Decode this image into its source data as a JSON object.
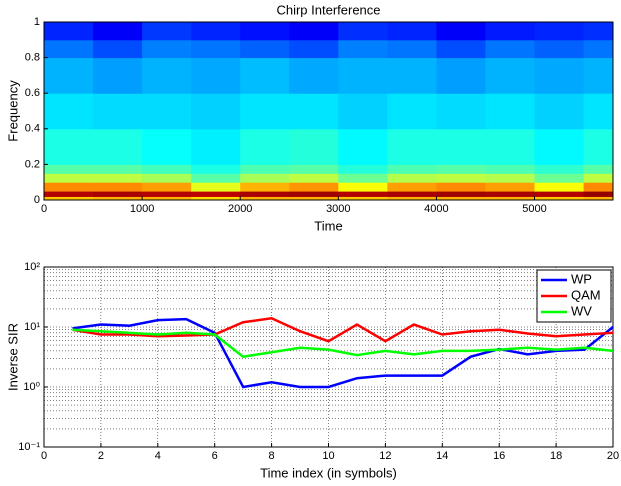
{
  "chart_data": [
    {
      "type": "heatmap",
      "title": "Chirp Interference",
      "xlabel": "Time",
      "ylabel": "Frequency",
      "colormap": "jet",
      "x": [
        0,
        500,
        1000,
        1500,
        2000,
        2500,
        3000,
        3500,
        4000,
        4500,
        5000,
        5500,
        5800
      ],
      "y": [
        0,
        0.02,
        0.05,
        0.1,
        0.15,
        0.2,
        0.4,
        0.6,
        0.8,
        0.9,
        1
      ],
      "z": [
        [
          0.68,
          0.7,
          0.7,
          0.66,
          0.7,
          0.7,
          0.68,
          0.7,
          0.7,
          0.7,
          0.68,
          0.7
        ],
        [
          0.95,
          0.96,
          0.95,
          0.94,
          0.96,
          0.97,
          0.95,
          0.96,
          0.97,
          0.96,
          0.95,
          0.98
        ],
        [
          0.74,
          0.74,
          0.72,
          0.6,
          0.7,
          0.73,
          0.62,
          0.72,
          0.74,
          0.72,
          0.62,
          0.74
        ],
        [
          0.56,
          0.56,
          0.54,
          0.46,
          0.54,
          0.56,
          0.48,
          0.55,
          0.56,
          0.55,
          0.48,
          0.56
        ],
        [
          0.46,
          0.46,
          0.44,
          0.4,
          0.45,
          0.46,
          0.41,
          0.45,
          0.46,
          0.45,
          0.42,
          0.46
        ],
        [
          0.4,
          0.4,
          0.38,
          0.36,
          0.4,
          0.41,
          0.37,
          0.4,
          0.4,
          0.4,
          0.37,
          0.4
        ],
        [
          0.35,
          0.34,
          0.34,
          0.33,
          0.35,
          0.35,
          0.33,
          0.35,
          0.34,
          0.35,
          0.33,
          0.35
        ],
        [
          0.3,
          0.28,
          0.3,
          0.29,
          0.31,
          0.29,
          0.3,
          0.3,
          0.28,
          0.3,
          0.29,
          0.3
        ],
        [
          0.24,
          0.2,
          0.25,
          0.24,
          0.22,
          0.2,
          0.25,
          0.24,
          0.2,
          0.24,
          0.22,
          0.24
        ],
        [
          0.16,
          0.12,
          0.18,
          0.16,
          0.14,
          0.12,
          0.17,
          0.16,
          0.12,
          0.15,
          0.16,
          0.17
        ]
      ],
      "xlim": [
        0,
        5800
      ],
      "xticks": [
        0,
        1000,
        2000,
        3000,
        4000,
        5000
      ],
      "ylim": [
        0,
        1
      ],
      "yticks": [
        0,
        0.2,
        0.4,
        0.6,
        0.8,
        1
      ]
    },
    {
      "type": "line",
      "xlabel": "Time index (in symbols)",
      "ylabel": "Inverse SIR",
      "x": [
        1,
        2,
        3,
        4,
        5,
        6,
        7,
        8,
        9,
        10,
        11,
        12,
        13,
        14,
        15,
        16,
        17,
        18,
        19,
        20
      ],
      "series": [
        {
          "name": "WP",
          "color": "#0000ff",
          "values": [
            9.5,
            11,
            10.5,
            13,
            13.5,
            8,
            1.0,
            1.2,
            1.0,
            1.0,
            1.4,
            1.55,
            1.55,
            1.55,
            3.2,
            4.3,
            3.5,
            4.0,
            4.2,
            10
          ]
        },
        {
          "name": "QAM",
          "color": "#ff0000",
          "values": [
            9,
            7.5,
            7.5,
            7,
            7.2,
            7.5,
            12,
            14,
            8.5,
            5.8,
            11,
            5.8,
            11,
            7.5,
            8.5,
            9,
            7.8,
            7,
            7.5,
            8
          ]
        },
        {
          "name": "WV",
          "color": "#00ff00",
          "values": [
            9,
            8.5,
            8,
            7.5,
            8,
            7.5,
            3.2,
            3.8,
            4.5,
            4.2,
            3.4,
            4.0,
            3.5,
            4.0,
            4.0,
            4.2,
            4.5,
            4.2,
            4.5,
            4.0
          ]
        }
      ],
      "xlim": [
        0,
        20
      ],
      "xticks": [
        0,
        2,
        4,
        6,
        8,
        10,
        12,
        14,
        16,
        18,
        20
      ],
      "ylim": [
        0.1,
        100
      ],
      "log_y": true,
      "yticks": [
        {
          "value": 0.1,
          "label": "10⁻¹"
        },
        {
          "value": 1,
          "label": "10⁰"
        },
        {
          "value": 10,
          "label": "10¹"
        },
        {
          "value": 100,
          "label": "10²"
        }
      ],
      "grid": true,
      "legend": "upper right"
    }
  ]
}
